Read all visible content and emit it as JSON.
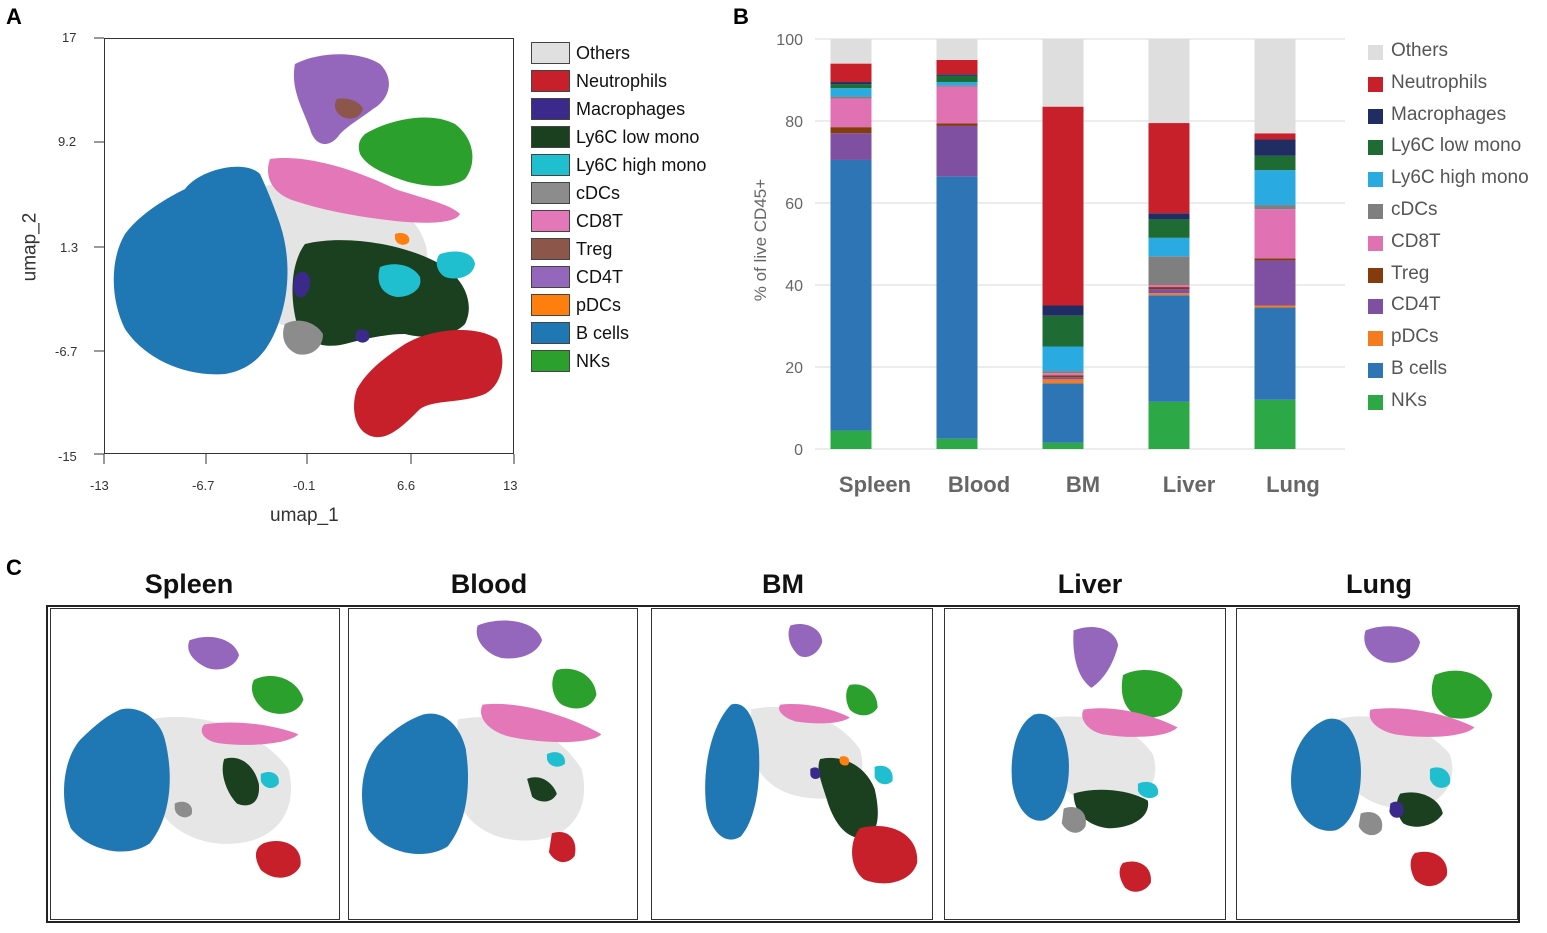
{
  "panels": {
    "a": "A",
    "b": "B",
    "c": "C"
  },
  "umap": {
    "xlabel": "umap_1",
    "ylabel": "umap_2",
    "xticks": [
      "-13",
      "-6.7",
      "-0.1",
      "6.6",
      "13"
    ],
    "yticks": [
      "17",
      "9.2",
      "1.3",
      "-6.7",
      "-15"
    ]
  },
  "legend_a": [
    {
      "label": "Others",
      "color": "#e0e0e0"
    },
    {
      "label": "Neutrophils",
      "color": "#c8202a"
    },
    {
      "label": "Macrophages",
      "color": "#3b2a8c"
    },
    {
      "label": "Ly6C low mono",
      "color": "#1a4020"
    },
    {
      "label": "Ly6C high mono",
      "color": "#1fbfd0"
    },
    {
      "label": "cDCs",
      "color": "#8c8c8c"
    },
    {
      "label": "CD8T",
      "color": "#e377b8"
    },
    {
      "label": "Treg",
      "color": "#8c564b"
    },
    {
      "label": "CD4T",
      "color": "#9467bd"
    },
    {
      "label": "pDCs",
      "color": "#ff7f0e"
    },
    {
      "label": "B cells",
      "color": "#1f77b4"
    },
    {
      "label": "NKs",
      "color": "#2ca02c"
    }
  ],
  "chart_data": {
    "type": "bar",
    "stacked": true,
    "categories": [
      "Spleen",
      "Blood",
      "BM",
      "Liver",
      "Lung"
    ],
    "ylabel": "% of live CD45+",
    "ylim": [
      0,
      100
    ],
    "yticks": [
      "0",
      "20",
      "40",
      "60",
      "80",
      "100"
    ],
    "series": [
      {
        "name": "NKs",
        "color": "#2ca946",
        "values": [
          4.5,
          2.5,
          1.5,
          11.5,
          12.0
        ]
      },
      {
        "name": "B cells",
        "color": "#2e75b6",
        "values": [
          66.0,
          64.0,
          14.5,
          26.0,
          22.5
        ]
      },
      {
        "name": "pDCs",
        "color": "#f47b20",
        "values": [
          0,
          0,
          1.0,
          0.5,
          0.5
        ]
      },
      {
        "name": "CD4T",
        "color": "#7f4fa2",
        "values": [
          6.5,
          12.3,
          0.5,
          1.0,
          11.0
        ]
      },
      {
        "name": "Treg",
        "color": "#843c0c",
        "values": [
          1.5,
          0.6,
          0.5,
          0.5,
          0.5
        ]
      },
      {
        "name": "CD8T",
        "color": "#e072b4",
        "values": [
          7.0,
          9.0,
          0.5,
          0.5,
          12.0
        ]
      },
      {
        "name": "cDCs",
        "color": "#7f7f7f",
        "values": [
          0.5,
          0.3,
          0.5,
          7.0,
          1.0
        ]
      },
      {
        "name": "Ly6C high mono",
        "color": "#29abe2",
        "values": [
          2.0,
          0.8,
          6.0,
          4.5,
          8.5
        ]
      },
      {
        "name": "Ly6C low mono",
        "color": "#1e6b34",
        "values": [
          1.0,
          1.5,
          7.5,
          4.5,
          3.5
        ]
      },
      {
        "name": "Macrophages",
        "color": "#1f2d63",
        "values": [
          0.5,
          0.4,
          2.5,
          1.5,
          4.0
        ]
      },
      {
        "name": "Neutrophils",
        "color": "#c8202a",
        "values": [
          4.5,
          3.5,
          48.5,
          22.0,
          1.5
        ]
      },
      {
        "name": "Others",
        "color": "#dedede",
        "values": [
          6.0,
          5.1,
          16.5,
          20.5,
          23.0
        ]
      }
    ]
  },
  "panel_c": {
    "titles": [
      "Spleen",
      "Blood",
      "BM",
      "Liver",
      "Lung"
    ]
  }
}
